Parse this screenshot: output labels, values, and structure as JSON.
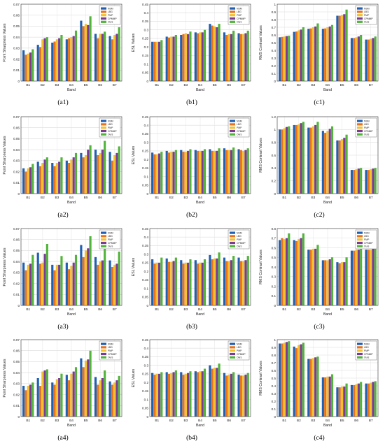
{
  "legend_labels": [
    "NSM",
    "LBG",
    "PMP",
    "CPMMP",
    "Ours"
  ],
  "colors": [
    "#1f5fb4",
    "#e8731c",
    "#f2c12e",
    "#7a3a96",
    "#52b43a"
  ],
  "categories": [
    "B1",
    "B2",
    "B3",
    "B4",
    "B5",
    "B6",
    "B7"
  ],
  "chart_data": [
    {
      "id": "a1",
      "caption": "(a1)",
      "type": "bar",
      "xlabel": "Band",
      "ylabel": "Point Sharpness Values",
      "ylim": [
        0,
        0.07
      ],
      "yticks": [
        "0",
        "0.01",
        "0.02",
        "0.03",
        "0.04",
        "0.05",
        "0.06",
        "0.07"
      ],
      "grid": true,
      "legend_position": "top-right",
      "series": [
        {
          "name": "NSM",
          "values": [
            0.028,
            0.033,
            0.035,
            0.038,
            0.055,
            0.043,
            0.041
          ]
        },
        {
          "name": "LBG",
          "values": [
            0.024,
            0.031,
            0.036,
            0.039,
            0.05,
            0.039,
            0.038
          ]
        },
        {
          "name": "PMP",
          "values": [
            0.025,
            0.038,
            0.038,
            0.04,
            0.052,
            0.043,
            0.042
          ]
        },
        {
          "name": "CPMMP",
          "values": [
            0.026,
            0.039,
            0.039,
            0.041,
            0.051,
            0.043,
            0.043
          ]
        },
        {
          "name": "Ours",
          "values": [
            0.029,
            0.04,
            0.042,
            0.046,
            0.059,
            0.045,
            0.049
          ]
        }
      ]
    },
    {
      "id": "b1",
      "caption": "(b1)",
      "type": "bar",
      "xlabel": "Band",
      "ylabel": "ESL Values",
      "ylim": [
        0,
        0.45
      ],
      "yticks": [
        "0",
        "0.05",
        "0.1",
        "0.15",
        "0.2",
        "0.25",
        "0.3",
        "0.35",
        "0.4",
        "0.45"
      ],
      "grid": true,
      "legend_position": "top-right",
      "series": [
        {
          "name": "NSM",
          "values": [
            0.23,
            0.26,
            0.27,
            0.285,
            0.335,
            0.285,
            0.28
          ]
        },
        {
          "name": "LBG",
          "values": [
            0.23,
            0.255,
            0.275,
            0.28,
            0.325,
            0.27,
            0.275
          ]
        },
        {
          "name": "PMP",
          "values": [
            0.23,
            0.26,
            0.28,
            0.285,
            0.32,
            0.275,
            0.275
          ]
        },
        {
          "name": "CPMMP",
          "values": [
            0.23,
            0.26,
            0.275,
            0.285,
            0.315,
            0.275,
            0.28
          ]
        },
        {
          "name": "Ours",
          "values": [
            0.24,
            0.27,
            0.29,
            0.3,
            0.335,
            0.295,
            0.295
          ]
        }
      ]
    },
    {
      "id": "c1",
      "caption": "(c1)",
      "type": "bar",
      "xlabel": "Band",
      "ylabel": "RMS Contrast Values",
      "ylim": [
        0,
        1
      ],
      "yticks": [
        "0",
        "0.1",
        "0.2",
        "0.3",
        "0.4",
        "0.5",
        "0.6",
        "0.7",
        "0.8",
        "0.9",
        "1"
      ],
      "grid": true,
      "legend_position": "top-right",
      "series": [
        {
          "name": "NSM",
          "values": [
            0.57,
            0.64,
            0.68,
            0.68,
            0.85,
            0.56,
            0.54
          ]
        },
        {
          "name": "LBG",
          "values": [
            0.575,
            0.645,
            0.685,
            0.685,
            0.85,
            0.56,
            0.54
          ]
        },
        {
          "name": "PMP",
          "values": [
            0.58,
            0.66,
            0.7,
            0.7,
            0.86,
            0.57,
            0.55
          ]
        },
        {
          "name": "CPMMP",
          "values": [
            0.585,
            0.67,
            0.71,
            0.71,
            0.87,
            0.58,
            0.56
          ]
        },
        {
          "name": "Ours",
          "values": [
            0.59,
            0.7,
            0.75,
            0.73,
            0.93,
            0.6,
            0.58
          ]
        }
      ]
    },
    {
      "id": "a2",
      "caption": "(a2)",
      "type": "bar",
      "xlabel": "Band",
      "ylabel": "Point Sharpness Values",
      "ylim": [
        0,
        0.07
      ],
      "yticks": [
        "0",
        "0.01",
        "0.02",
        "0.03",
        "0.04",
        "0.05",
        "0.06",
        "0.07"
      ],
      "grid": true,
      "legend_position": "top-right",
      "series": [
        {
          "name": "NSM",
          "values": [
            0.023,
            0.029,
            0.028,
            0.03,
            0.037,
            0.04,
            0.038
          ]
        },
        {
          "name": "LBG",
          "values": [
            0.02,
            0.025,
            0.025,
            0.028,
            0.033,
            0.035,
            0.03
          ]
        },
        {
          "name": "PMP",
          "values": [
            0.023,
            0.028,
            0.028,
            0.031,
            0.035,
            0.037,
            0.035
          ]
        },
        {
          "name": "CPMMP",
          "values": [
            0.024,
            0.031,
            0.029,
            0.033,
            0.04,
            0.04,
            0.037
          ]
        },
        {
          "name": "Ours",
          "values": [
            0.027,
            0.033,
            0.033,
            0.037,
            0.044,
            0.048,
            0.043
          ]
        }
      ]
    },
    {
      "id": "b2",
      "caption": "(b2)",
      "type": "bar",
      "xlabel": "Band",
      "ylabel": "ESL Values",
      "ylim": [
        0,
        0.45
      ],
      "yticks": [
        "0",
        "0.05",
        "0.1",
        "0.15",
        "0.2",
        "0.25",
        "0.3",
        "0.35",
        "0.4",
        "0.45"
      ],
      "grid": true,
      "legend_position": "top-right",
      "series": [
        {
          "name": "NSM",
          "values": [
            0.24,
            0.25,
            0.255,
            0.255,
            0.26,
            0.265,
            0.26
          ]
        },
        {
          "name": "LBG",
          "values": [
            0.23,
            0.24,
            0.245,
            0.25,
            0.25,
            0.255,
            0.255
          ]
        },
        {
          "name": "PMP",
          "values": [
            0.23,
            0.245,
            0.245,
            0.25,
            0.25,
            0.255,
            0.25
          ]
        },
        {
          "name": "CPMMP",
          "values": [
            0.235,
            0.245,
            0.25,
            0.25,
            0.25,
            0.255,
            0.255
          ]
        },
        {
          "name": "Ours",
          "values": [
            0.245,
            0.255,
            0.26,
            0.26,
            0.265,
            0.27,
            0.265
          ]
        }
      ]
    },
    {
      "id": "c2",
      "caption": "(c2)",
      "type": "bar",
      "xlabel": "Band",
      "ylabel": "RMS Contrast Values",
      "ylim": [
        0,
        1.2
      ],
      "yticks": [
        "0",
        "0.2",
        "0.4",
        "0.6",
        "0.8",
        "1",
        "1.2"
      ],
      "grid": true,
      "legend_position": "top-right",
      "series": [
        {
          "name": "NSM",
          "values": [
            1.0,
            1.07,
            1.03,
            0.98,
            0.83,
            0.37,
            0.37
          ]
        },
        {
          "name": "LBG",
          "values": [
            1.0,
            1.07,
            1.03,
            0.95,
            0.83,
            0.37,
            0.37
          ]
        },
        {
          "name": "PMP",
          "values": [
            1.02,
            1.08,
            1.05,
            0.98,
            0.85,
            0.38,
            0.38
          ]
        },
        {
          "name": "CPMMP",
          "values": [
            1.04,
            1.1,
            1.07,
            1.01,
            0.87,
            0.39,
            0.39
          ]
        },
        {
          "name": "Ours",
          "values": [
            1.05,
            1.12,
            1.12,
            1.05,
            0.92,
            0.4,
            0.4
          ]
        }
      ]
    },
    {
      "id": "a3",
      "caption": "(a3)",
      "type": "bar",
      "xlabel": "Band",
      "ylabel": "Point Sharpness Values",
      "ylim": [
        0,
        0.07
      ],
      "yticks": [
        "0",
        "0.01",
        "0.02",
        "0.03",
        "0.04",
        "0.05",
        "0.06",
        "0.07"
      ],
      "grid": true,
      "legend_position": "top-right",
      "series": [
        {
          "name": "NSM",
          "values": [
            0.039,
            0.048,
            0.037,
            0.039,
            0.055,
            0.044,
            0.041
          ]
        },
        {
          "name": "LBG",
          "values": [
            0.032,
            0.038,
            0.032,
            0.033,
            0.044,
            0.037,
            0.035
          ]
        },
        {
          "name": "PMP",
          "values": [
            0.037,
            0.039,
            0.037,
            0.036,
            0.05,
            0.04,
            0.037
          ]
        },
        {
          "name": "CPMMP",
          "values": [
            0.038,
            0.047,
            0.037,
            0.039,
            0.052,
            0.041,
            0.038
          ]
        },
        {
          "name": "Ours",
          "values": [
            0.046,
            0.056,
            0.045,
            0.046,
            0.063,
            0.052,
            0.049
          ]
        }
      ]
    },
    {
      "id": "b3",
      "caption": "(b3)",
      "type": "bar",
      "xlabel": "Band",
      "ylabel": "ESL Values",
      "ylim": [
        0,
        0.45
      ],
      "yticks": [
        "0",
        "0.05",
        "0.1",
        "0.15",
        "0.2",
        "0.25",
        "0.3",
        "0.35",
        "0.4",
        "0.45"
      ],
      "grid": true,
      "legend_position": "top-right",
      "series": [
        {
          "name": "NSM",
          "values": [
            0.27,
            0.275,
            0.265,
            0.265,
            0.295,
            0.28,
            0.28
          ]
        },
        {
          "name": "LBG",
          "values": [
            0.245,
            0.255,
            0.245,
            0.245,
            0.27,
            0.26,
            0.26
          ]
        },
        {
          "name": "PMP",
          "values": [
            0.25,
            0.255,
            0.25,
            0.25,
            0.275,
            0.26,
            0.26
          ]
        },
        {
          "name": "CPMMP",
          "values": [
            0.25,
            0.26,
            0.25,
            0.25,
            0.275,
            0.265,
            0.265
          ]
        },
        {
          "name": "Ours",
          "values": [
            0.28,
            0.28,
            0.27,
            0.27,
            0.31,
            0.29,
            0.29
          ]
        }
      ]
    },
    {
      "id": "c3",
      "caption": "(c3)",
      "type": "bar",
      "xlabel": "Band",
      "ylabel": "RMS Contrast Values",
      "ylim": [
        0,
        0.8
      ],
      "yticks": [
        "0",
        "0.1",
        "0.2",
        "0.3",
        "0.4",
        "0.5",
        "0.6",
        "0.7",
        "0.8"
      ],
      "grid": true,
      "legend_position": "top-right",
      "series": [
        {
          "name": "NSM",
          "values": [
            0.68,
            0.68,
            0.58,
            0.47,
            0.45,
            0.57,
            0.58
          ]
        },
        {
          "name": "LBG",
          "values": [
            0.7,
            0.67,
            0.58,
            0.47,
            0.44,
            0.57,
            0.58
          ]
        },
        {
          "name": "PMP",
          "values": [
            0.69,
            0.69,
            0.59,
            0.47,
            0.45,
            0.58,
            0.58
          ]
        },
        {
          "name": "CPMMP",
          "values": [
            0.7,
            0.7,
            0.59,
            0.48,
            0.45,
            0.58,
            0.59
          ]
        },
        {
          "name": "Ours",
          "values": [
            0.75,
            0.75,
            0.63,
            0.5,
            0.5,
            0.6,
            0.62
          ]
        }
      ]
    },
    {
      "id": "a4",
      "caption": "(a4)",
      "type": "bar",
      "xlabel": "Band",
      "ylabel": "Point Sharpness Values",
      "ylim": [
        0,
        0.07
      ],
      "yticks": [
        "0",
        "0.01",
        "0.02",
        "0.03",
        "0.04",
        "0.05",
        "0.06",
        "0.07"
      ],
      "grid": true,
      "legend_position": "top-right",
      "series": [
        {
          "name": "NSM",
          "values": [
            0.028,
            0.035,
            0.031,
            0.038,
            0.053,
            0.036,
            0.032
          ]
        },
        {
          "name": "LBG",
          "values": [
            0.024,
            0.028,
            0.029,
            0.033,
            0.045,
            0.029,
            0.029
          ]
        },
        {
          "name": "PMP",
          "values": [
            0.028,
            0.041,
            0.034,
            0.039,
            0.051,
            0.033,
            0.031
          ]
        },
        {
          "name": "CPMMP",
          "values": [
            0.029,
            0.042,
            0.035,
            0.041,
            0.052,
            0.035,
            0.033
          ]
        },
        {
          "name": "Ours",
          "values": [
            0.031,
            0.043,
            0.039,
            0.045,
            0.06,
            0.042,
            0.037
          ]
        }
      ]
    },
    {
      "id": "b4",
      "caption": "(b4)",
      "type": "bar",
      "xlabel": "Band",
      "ylabel": "ESL Values",
      "ylim": [
        0,
        0.45
      ],
      "yticks": [
        "0",
        "0.05",
        "0.1",
        "0.15",
        "0.2",
        "0.25",
        "0.3",
        "0.35",
        "0.4",
        "0.45"
      ],
      "grid": true,
      "legend_position": "top-right",
      "series": [
        {
          "name": "NSM",
          "values": [
            0.255,
            0.26,
            0.26,
            0.265,
            0.3,
            0.255,
            0.245
          ]
        },
        {
          "name": "LBG",
          "values": [
            0.245,
            0.25,
            0.245,
            0.26,
            0.28,
            0.24,
            0.24
          ]
        },
        {
          "name": "PMP",
          "values": [
            0.25,
            0.255,
            0.25,
            0.265,
            0.285,
            0.245,
            0.24
          ]
        },
        {
          "name": "CPMMP",
          "values": [
            0.25,
            0.26,
            0.255,
            0.265,
            0.285,
            0.25,
            0.245
          ]
        },
        {
          "name": "Ours",
          "values": [
            0.26,
            0.27,
            0.265,
            0.28,
            0.31,
            0.26,
            0.255
          ]
        }
      ]
    },
    {
      "id": "c4",
      "caption": "(c4)",
      "type": "bar",
      "xlabel": "Band",
      "ylabel": "RMS Contrast Values",
      "ylim": [
        0,
        1
      ],
      "yticks": [
        "0",
        "0.1",
        "0.2",
        "0.3",
        "0.4",
        "0.5",
        "0.6",
        "0.7",
        "0.8",
        "0.9",
        "1"
      ],
      "grid": true,
      "legend_position": "top-right",
      "series": [
        {
          "name": "NSM",
          "values": [
            0.95,
            0.91,
            0.75,
            0.51,
            0.38,
            0.41,
            0.43
          ]
        },
        {
          "name": "LBG",
          "values": [
            0.95,
            0.89,
            0.75,
            0.51,
            0.38,
            0.41,
            0.43
          ]
        },
        {
          "name": "PMP",
          "values": [
            0.96,
            0.93,
            0.76,
            0.52,
            0.39,
            0.42,
            0.44
          ]
        },
        {
          "name": "CPMMP",
          "values": [
            0.97,
            0.94,
            0.77,
            0.52,
            0.39,
            0.43,
            0.45
          ]
        },
        {
          "name": "Ours",
          "values": [
            0.98,
            0.96,
            0.78,
            0.55,
            0.43,
            0.45,
            0.46
          ]
        }
      ]
    }
  ]
}
